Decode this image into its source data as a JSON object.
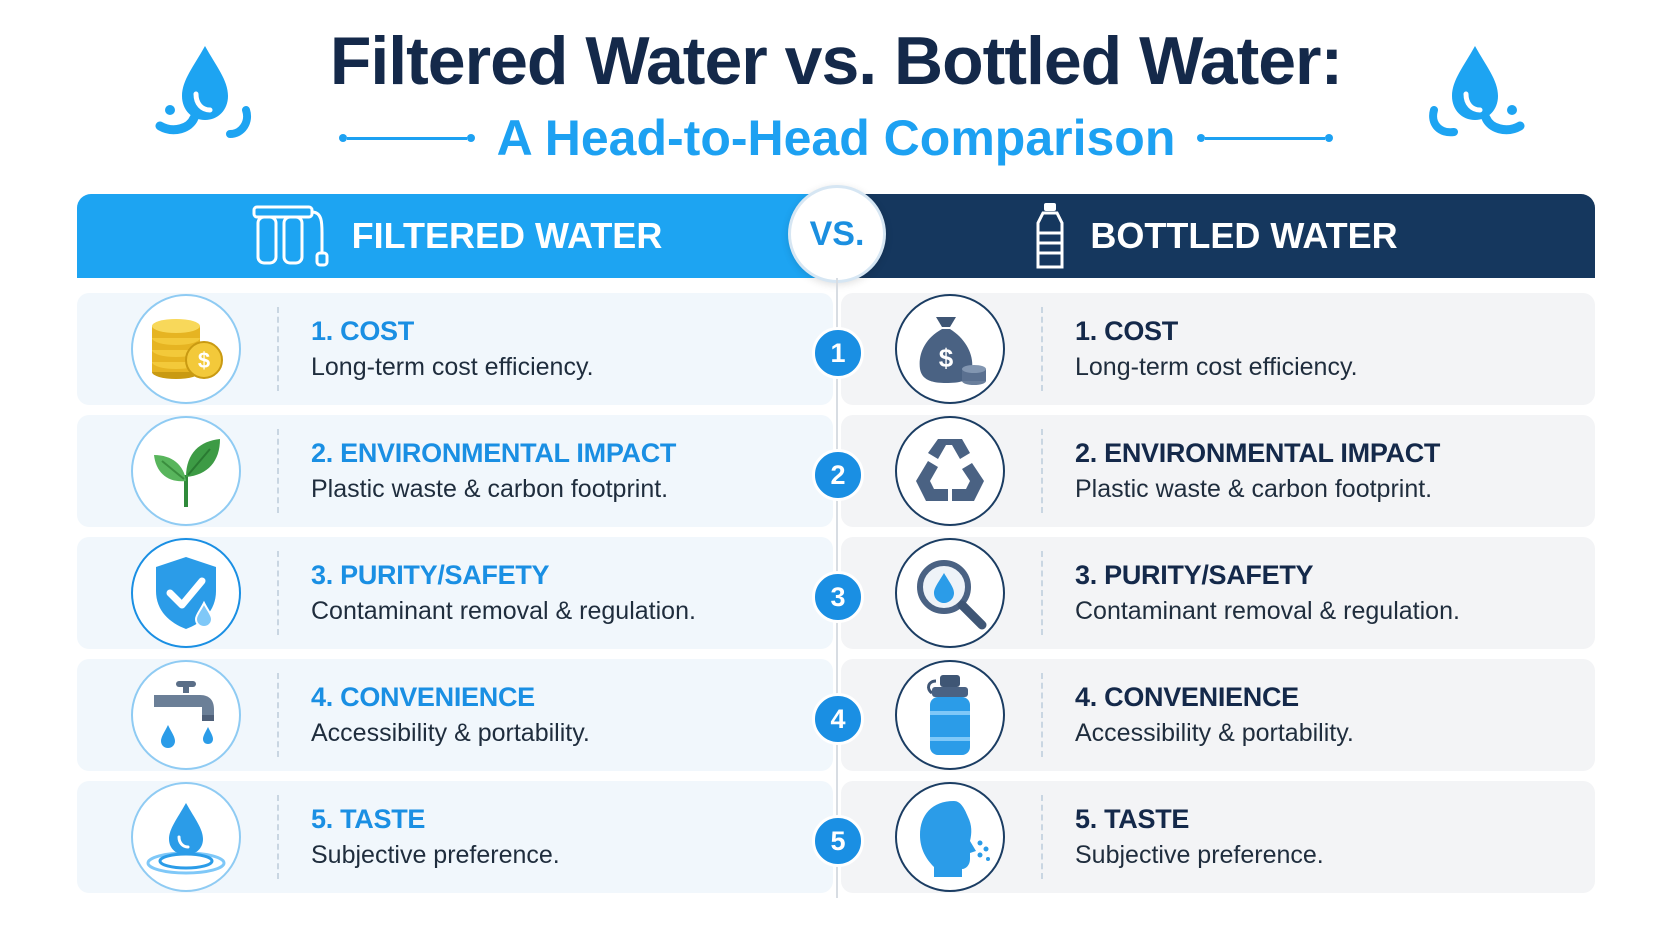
{
  "title": "Filtered Water vs. Bottled Water:",
  "subtitle": "A Head-to-Head Comparison",
  "decor_icons": [
    "water-drop-splash-icon",
    "water-drop-splash-icon"
  ],
  "header": {
    "left_label": "FILTERED WATER",
    "left_icon": "water-filter-icon",
    "vs_label": "VS.",
    "right_label": "BOTTLED WATER",
    "right_icon": "water-bottle-icon"
  },
  "colors": {
    "accent_blue": "#1da4f2",
    "navy": "#15375e",
    "title_navy": "#14294a",
    "left_card_bg": "#f1f7fc",
    "right_card_bg": "#f3f4f6"
  },
  "rows": [
    {
      "number": "1",
      "left": {
        "title": "1. COST",
        "desc": "Long-term cost efficiency.",
        "icon": "coins-dollar-icon"
      },
      "right": {
        "title": "1. COST",
        "desc": "Long-term cost efficiency.",
        "icon": "money-bag-icon"
      }
    },
    {
      "number": "2",
      "left": {
        "title": "2. ENVIRONMENTAL IMPACT",
        "desc": "Plastic waste & carbon footprint.",
        "icon": "leaves-icon"
      },
      "right": {
        "title": "2. ENVIRONMENTAL IMPACT",
        "desc": "Plastic waste & carbon footprint.",
        "icon": "recycle-icon"
      }
    },
    {
      "number": "3",
      "left": {
        "title": "3. PURITY/SAFETY",
        "desc": "Contaminant removal & regulation.",
        "icon": "shield-check-icon"
      },
      "right": {
        "title": "3. PURITY/SAFETY",
        "desc": "Contaminant removal & regulation.",
        "icon": "magnifier-drop-icon"
      }
    },
    {
      "number": "4",
      "left": {
        "title": "4. CONVENIENCE",
        "desc": "Accessibility & portability.",
        "icon": "faucet-icon"
      },
      "right": {
        "title": "4. CONVENIENCE",
        "desc": "Accessibility & portability.",
        "icon": "sports-bottle-icon"
      }
    },
    {
      "number": "5",
      "left": {
        "title": "5. TASTE",
        "desc": "Subjective preference.",
        "icon": "drop-ripple-icon"
      },
      "right": {
        "title": "5. TASTE",
        "desc": "Subjective preference.",
        "icon": "face-taste-icon"
      }
    }
  ]
}
